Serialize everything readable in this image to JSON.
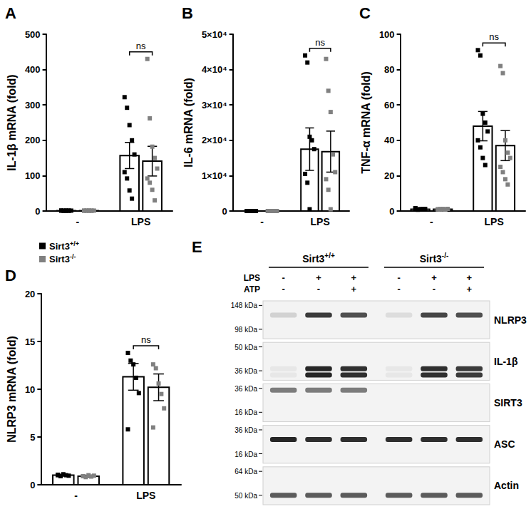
{
  "chart_data": [
    {
      "type": "bar",
      "title": "A",
      "y_label": "IL-1β mRNA (fold)",
      "categories": [
        "-",
        "LPS"
      ],
      "ylim": [
        0,
        500
      ],
      "yticks": [
        0,
        100,
        200,
        300,
        400,
        500
      ],
      "grid": false,
      "annotations": [
        {
          "text": "ns",
          "category": "LPS"
        }
      ],
      "series": [
        {
          "name": "Sirt3+/+",
          "color": "#000000",
          "values": [
            1.0,
            157
          ],
          "errors": [
            0.1,
            37
          ],
          "points": [
            [
              1.2,
              0.8,
              1.0,
              0.9,
              1.1,
              1.3,
              0.7,
              1.0,
              1.0
            ],
            [
              322,
              292,
              243,
              200,
              160,
              110,
              92,
              58,
              35
            ]
          ]
        },
        {
          "name": "Sirt3-/-",
          "color": "#808080",
          "values": [
            1.0,
            141
          ],
          "errors": [
            0.1,
            42
          ],
          "points": [
            [
              0.9,
              1.1,
              1.0,
              0.8,
              1.2,
              1.0,
              0.9,
              1.1,
              1.0
            ],
            [
              430,
              262,
              182,
              150,
              120,
              92,
              80,
              60,
              30
            ]
          ]
        }
      ]
    },
    {
      "type": "bar",
      "title": "B",
      "y_label": "IL-6 mRNA (fold)",
      "categories": [
        "-",
        "LPS"
      ],
      "ylim": [
        0,
        50000
      ],
      "yticks": [
        0,
        {
          "value": 10000,
          "label": "1×10⁴"
        },
        {
          "value": 20000,
          "label": "2×10⁴"
        },
        {
          "value": 30000,
          "label": "3×10⁴"
        },
        {
          "value": 40000,
          "label": "4×10⁴"
        },
        {
          "value": 50000,
          "label": "5×10⁴"
        }
      ],
      "grid": false,
      "annotations": [
        {
          "text": "ns",
          "category": "LPS"
        }
      ],
      "series": [
        {
          "name": "Sirt3+/+",
          "color": "#000000",
          "values": [
            1.0,
            17500
          ],
          "errors": [
            0.1,
            6000
          ],
          "points": [
            [
              1.1,
              0.9,
              1.0,
              1.2,
              0.8,
              1.0,
              1.1,
              0.9
            ],
            [
              44000,
              42000,
              21000,
              20000,
              17500,
              10500,
              8000,
              500
            ]
          ]
        },
        {
          "name": "Sirt3-/-",
          "color": "#808080",
          "values": [
            1.0,
            16800
          ],
          "errors": [
            0.1,
            5800
          ],
          "points": [
            [
              1.0,
              0.9,
              1.1,
              1.0,
              0.8,
              1.2,
              1.0,
              0.9
            ],
            [
              43000,
              34000,
              28000,
              16000,
              11000,
              9000,
              6000,
              500
            ]
          ]
        }
      ]
    },
    {
      "type": "bar",
      "title": "C",
      "y_label": "TNF-α mRNA (fold)",
      "categories": [
        "-",
        "LPS"
      ],
      "ylim": [
        0,
        100
      ],
      "yticks": [
        0,
        20,
        40,
        60,
        80,
        100
      ],
      "grid": false,
      "annotations": [
        {
          "text": "ns",
          "category": "LPS"
        }
      ],
      "series": [
        {
          "name": "Sirt3+/+",
          "color": "#000000",
          "values": [
            1.0,
            48
          ],
          "errors": [
            0.1,
            8.3
          ],
          "points": [
            [
              1.6,
              0.8,
              1.0,
              0.9,
              1.2,
              1.4,
              0.7,
              1.0,
              1.1
            ],
            [
              91,
              88,
              55,
              50,
              45,
              40,
              36,
              30,
              26
            ]
          ]
        },
        {
          "name": "Sirt3-/-",
          "color": "#808080",
          "values": [
            1.0,
            37
          ],
          "errors": [
            0.1,
            8.5
          ],
          "points": [
            [
              0.9,
              1.1,
              1.0,
              0.8,
              1.2,
              1.0,
              0.9,
              1.1,
              1.0
            ],
            [
              82,
              78,
              40,
              33,
              30,
              25,
              22,
              18,
              15
            ]
          ]
        }
      ]
    },
    {
      "type": "bar",
      "title": "D",
      "y_label": "NLRP3 mRNA (fold)",
      "categories": [
        "-",
        "LPS"
      ],
      "ylim": [
        0,
        20
      ],
      "yticks": [
        0,
        5,
        10,
        15,
        20
      ],
      "grid": false,
      "legend": "top-left",
      "annotations": [
        {
          "text": "ns",
          "category": "LPS"
        }
      ],
      "series": [
        {
          "name": "Sirt3+/+",
          "color": "#000000",
          "values": [
            1.0,
            11.3
          ],
          "errors": [
            0.1,
            1.4
          ],
          "points": [
            [
              1.0,
              0.9,
              1.1,
              1.0,
              0.95,
              1.05
            ],
            [
              13.8,
              13.0,
              12.6,
              11.2,
              9.6,
              5.8
            ]
          ]
        },
        {
          "name": "Sirt3-/-",
          "color": "#808080",
          "values": [
            0.9,
            10.2
          ],
          "errors": [
            0.1,
            1.4
          ],
          "points": [
            [
              0.9,
              0.8,
              1.0,
              0.85,
              0.95,
              0.9
            ],
            [
              12.6,
              12.2,
              10.6,
              9.5,
              8.0,
              6.0
            ]
          ]
        }
      ]
    }
  ],
  "blot": {
    "title": "E",
    "groups": [
      {
        "label": "Sirt3+/+",
        "lanes": 3
      },
      {
        "label": "Sirt3-/-",
        "lanes": 3
      }
    ],
    "treatments": [
      {
        "label": "LPS",
        "lanes": [
          "-",
          "+",
          "+",
          "-",
          "+",
          "+"
        ]
      },
      {
        "label": "ATP",
        "lanes": [
          "-",
          "-",
          "+",
          "-",
          "-",
          "+"
        ]
      }
    ],
    "panels": [
      {
        "label": "NLRP3",
        "markers": [
          {
            "value": 148,
            "label": "148 kDa"
          },
          {
            "value": 98,
            "label": "98 kDa"
          }
        ],
        "band_kda": [
          125
        ],
        "intensity": [
          0.15,
          0.85,
          0.75,
          0.1,
          0.8,
          0.75
        ]
      },
      {
        "label": "IL-1β",
        "markers": [
          {
            "value": 50,
            "label": "50 kDa"
          },
          {
            "value": 36,
            "label": "36 kDa"
          }
        ],
        "band_kda": [
          37,
          34
        ],
        "intensity": [
          0.05,
          0.95,
          0.9,
          0.05,
          0.9,
          0.85
        ]
      },
      {
        "label": "SIRT3",
        "markers": [
          {
            "value": 36,
            "label": "36 kDa"
          },
          {
            "value": 16,
            "label": "16 kDa"
          }
        ],
        "band_kda": [
          34
        ],
        "intensity": [
          0.55,
          0.55,
          0.55,
          0,
          0,
          0
        ]
      },
      {
        "label": "ASC",
        "markers": [
          {
            "value": 36,
            "label": "36 kDa"
          },
          {
            "value": 16,
            "label": "16 kDa"
          }
        ],
        "band_kda": [
          26
        ],
        "intensity": [
          0.95,
          0.9,
          0.9,
          0.9,
          0.9,
          0.9
        ]
      },
      {
        "label": "Actin",
        "markers": [
          {
            "value": 64,
            "label": "64 kDa"
          },
          {
            "value": 50,
            "label": "50 kDa"
          }
        ],
        "band_kda": [
          50
        ],
        "intensity": [
          0.7,
          0.7,
          0.7,
          0.7,
          0.7,
          0.7
        ]
      }
    ]
  }
}
